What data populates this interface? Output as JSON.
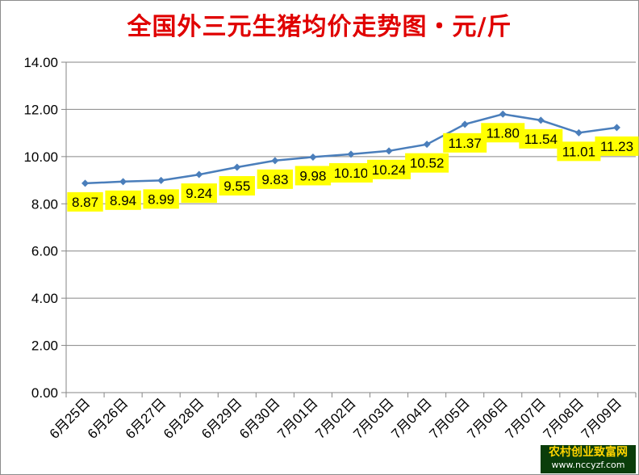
{
  "chart_data": {
    "type": "line",
    "title": "全国外三元生猪均价走势图・元/斤",
    "xlabel": "",
    "ylabel": "",
    "categories": [
      "6月25日",
      "6月26日",
      "6月27日",
      "6月28日",
      "6月29日",
      "6月30日",
      "7月01日",
      "7月02日",
      "7月03日",
      "7月04日",
      "7月05日",
      "7月06日",
      "7月07日",
      "7月08日",
      "7月09日"
    ],
    "series": [
      {
        "values": [
          8.87,
          8.94,
          8.99,
          9.24,
          9.55,
          9.83,
          9.98,
          10.1,
          10.24,
          10.52,
          11.37,
          11.8,
          11.54,
          11.01,
          11.23
        ]
      }
    ],
    "data_labels": [
      "8.87",
      "8.94",
      "8.99",
      "9.24",
      "9.55",
      "9.83",
      "9.98",
      "10.10",
      "10.24",
      "10.52",
      "11.37",
      "11.80",
      "11.54",
      "11.01",
      "11.23"
    ],
    "y_ticks": [
      "0.00",
      "2.00",
      "4.00",
      "6.00",
      "8.00",
      "10.00",
      "12.00",
      "14.00"
    ],
    "ylim": [
      0,
      14
    ],
    "grid": true,
    "legend": "none",
    "colors": {
      "line": "#4a7ebb",
      "marker": "#4a7ebb",
      "label_bg": "#ffff00",
      "title": "#e00000"
    }
  },
  "watermark": {
    "line1": "农村创业致富网",
    "line2": "www.nccyzf.com"
  }
}
